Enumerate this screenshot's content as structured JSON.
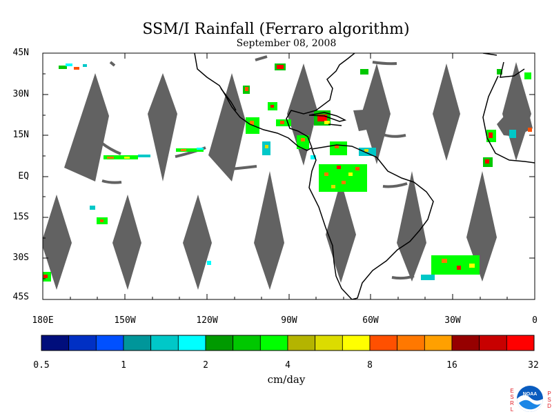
{
  "title": "SSM/I Rainfall (Ferraro algorithm)",
  "date": "September 08, 2008",
  "map": {
    "lat_labels": [
      "45N",
      "30N",
      "15N",
      "EQ",
      "15S",
      "30S",
      "45S"
    ],
    "lon_labels": [
      "180E",
      "150W",
      "120W",
      "90W",
      "60W",
      "30W",
      "0"
    ],
    "no_data_color": "#626262",
    "coastline_color": "#000000"
  },
  "colorbar": {
    "colors": [
      "#000e7c",
      "#0030c4",
      "#0050ff",
      "#00969a",
      "#00c8c8",
      "#00ffff",
      "#009a00",
      "#00c800",
      "#00ff00",
      "#b4b400",
      "#dcdc00",
      "#ffff00",
      "#ff5000",
      "#ff7800",
      "#ffa000",
      "#960000",
      "#c80000",
      "#ff0000"
    ],
    "tick_labels": [
      "0.5",
      "1",
      "2",
      "4",
      "8",
      "16",
      "32"
    ],
    "units": "cm/day"
  },
  "logo": {
    "center_text": "NOAA",
    "left_text": "ESRL",
    "right_text": "PSD"
  }
}
